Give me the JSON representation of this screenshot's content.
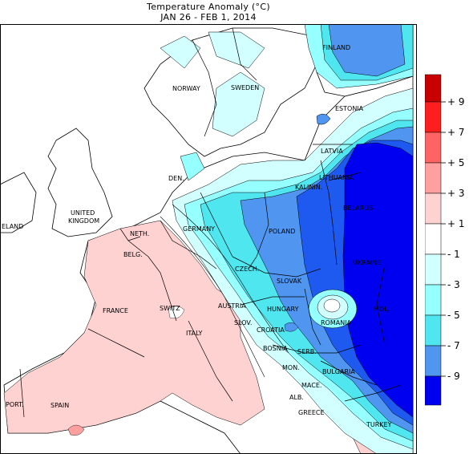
{
  "title": "Temperature Anomaly (°C)",
  "subtitle": "JAN 26  -  FEB  1, 2014",
  "colors": {
    "pos9": "#c80000",
    "pos7": "#ff1e1e",
    "pos5": "#ff6464",
    "pos3": "#ffa0a0",
    "pos1": "#ffd2d2",
    "neutral": "#ffffff",
    "neg1": "#d2ffff",
    "neg3": "#96ffff",
    "neg5": "#50e6f0",
    "neg7": "#5096f0",
    "neg9": "#1e5af0",
    "neg11": "#0000f0",
    "sea": "#ffffff",
    "coast": "#000000"
  },
  "legend": {
    "ticks": [
      "9",
      "7",
      "5",
      "3",
      "1",
      "-1",
      "-3",
      "-5",
      "-7",
      "-9"
    ]
  },
  "labels": [
    {
      "key": "finland",
      "text": "FINLAND"
    },
    {
      "key": "norway",
      "text": "NORWAY"
    },
    {
      "key": "sweden",
      "text": "SWEDEN"
    },
    {
      "key": "estonia",
      "text": "ESTONIA"
    },
    {
      "key": "latvia",
      "text": "LATVIA"
    },
    {
      "key": "lithuania",
      "text": "LITHUANIA"
    },
    {
      "key": "den",
      "text": "DEN."
    },
    {
      "key": "kalinin",
      "text": "KALININ."
    },
    {
      "key": "belarus",
      "text": "BELARUS"
    },
    {
      "key": "uk1",
      "text": "UNITED"
    },
    {
      "key": "uk2",
      "text": "KINGDOM"
    },
    {
      "key": "ireland",
      "text": "ELAND"
    },
    {
      "key": "germany",
      "text": "GERMANY"
    },
    {
      "key": "poland",
      "text": "POLAND"
    },
    {
      "key": "neth",
      "text": "NETH."
    },
    {
      "key": "belg",
      "text": "BELG."
    },
    {
      "key": "ukraine",
      "text": "UKRAINE"
    },
    {
      "key": "czech",
      "text": "CZECH."
    },
    {
      "key": "slovak",
      "text": "SLOVAK"
    },
    {
      "key": "france",
      "text": "FRANCE"
    },
    {
      "key": "switz",
      "text": "SWITZ"
    },
    {
      "key": "austria",
      "text": "AUSTRIA"
    },
    {
      "key": "hungary",
      "text": "HUNGARY"
    },
    {
      "key": "romania",
      "text": "ROMANIA"
    },
    {
      "key": "mol",
      "text": "MOL."
    },
    {
      "key": "slov",
      "text": "SLOV."
    },
    {
      "key": "croatia",
      "text": "CROATIA"
    },
    {
      "key": "italy",
      "text": "ITALY"
    },
    {
      "key": "bosnia",
      "text": "BOSNIA"
    },
    {
      "key": "serb",
      "text": "SERB."
    },
    {
      "key": "mon",
      "text": "MON."
    },
    {
      "key": "bulgaria",
      "text": "BULGARIA"
    },
    {
      "key": "mace",
      "text": "MACE."
    },
    {
      "key": "alb",
      "text": "ALB."
    },
    {
      "key": "port",
      "text": "PORT."
    },
    {
      "key": "spain",
      "text": "SPAIN"
    },
    {
      "key": "greece",
      "text": "GREECE"
    },
    {
      "key": "turkey",
      "text": "TURKEY"
    }
  ]
}
